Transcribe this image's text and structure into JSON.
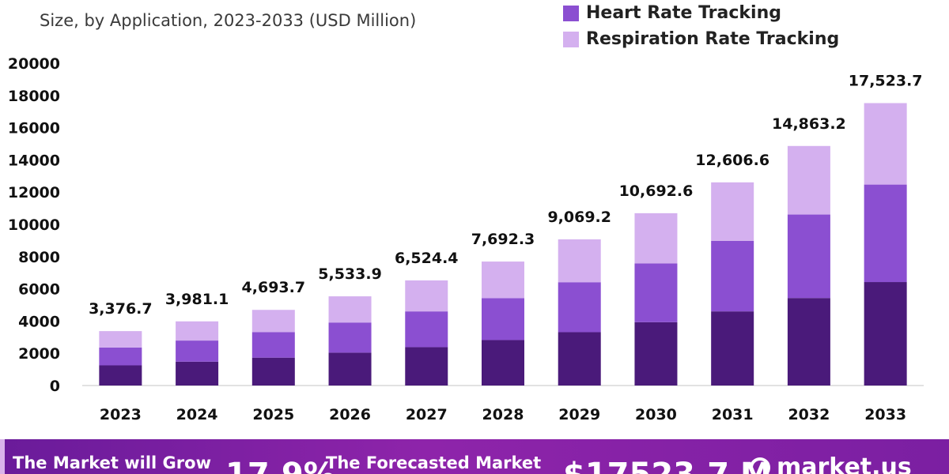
{
  "header": {
    "title_fragment": "",
    "subtitle": "Size, by Application, 2023-2033 (USD Million)"
  },
  "legend": {
    "items": [
      {
        "label": "Heart Rate Tracking",
        "color": "#8b4fd1"
      },
      {
        "label": "Respiration Rate Tracking",
        "color": "#d4b0ef"
      }
    ]
  },
  "chart_data": {
    "type": "bar",
    "stacked": true,
    "categories": [
      "2023",
      "2024",
      "2025",
      "2026",
      "2027",
      "2028",
      "2029",
      "2030",
      "2031",
      "2032",
      "2033"
    ],
    "series": [
      {
        "name": "",
        "color": "#4a1a7a",
        "values": [
          1250,
          1480,
          1730,
          2040,
          2380,
          2820,
          3310,
          3930,
          4600,
          5430,
          6420
        ]
      },
      {
        "name": "Heart Rate Tracking",
        "color": "#8b4fd1",
        "values": [
          1110,
          1310,
          1580,
          1870,
          2220,
          2600,
          3100,
          3650,
          4380,
          5180,
          6050
        ]
      },
      {
        "name": "Respiration Rate Tracking",
        "color": "#d4b0ef",
        "values": [
          1016.7,
          1191.1,
          1383.7,
          1623.9,
          1924.4,
          2272.3,
          2659.2,
          3112.6,
          3626.6,
          4253.2,
          5053.7
        ]
      }
    ],
    "totals_labels": [
      "3,376.7",
      "3,981.1",
      "4,693.7",
      "5,533.9",
      "6,524.4",
      "7,692.3",
      "9,069.2",
      "10,692.6",
      "12,606.6",
      "14,863.2",
      "17,523.7"
    ],
    "ylim": [
      0,
      20000
    ],
    "yticks": [
      0,
      2000,
      4000,
      6000,
      8000,
      10000,
      12000,
      14000,
      16000,
      18000,
      20000
    ],
    "grid": false,
    "legend_position": "top-right"
  },
  "footer": {
    "grow_text": "The Market will Grow",
    "cagr_value": "17.9%",
    "forecast_text": "The Forecasted Market",
    "forecast_value": "$17523.7 M",
    "brand_text": "market.us"
  }
}
